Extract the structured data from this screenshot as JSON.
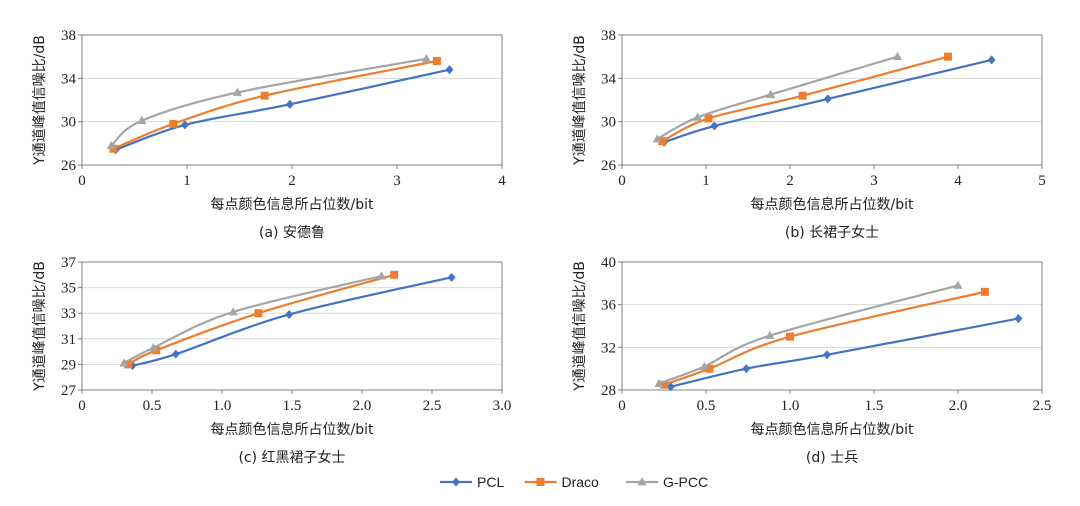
{
  "figure": {
    "legend": [
      {
        "name": "PCL",
        "color": "#4472C4",
        "marker": "diamond"
      },
      {
        "name": "Draco",
        "color": "#ED7D31",
        "marker": "square"
      },
      {
        "name": "G-PCC",
        "color": "#A5A5A5",
        "marker": "triangle"
      }
    ]
  },
  "chart_data": [
    {
      "type": "line",
      "caption": "(a) 安德鲁",
      "xlabel": "每点颜色信息所占位数/bit",
      "ylabel": "Y通道峰值信噪比/dB",
      "xlim": [
        0,
        4
      ],
      "ylim": [
        26,
        38
      ],
      "xticks": [
        "0",
        "1",
        "2",
        "3",
        "4"
      ],
      "yticks": [
        "26",
        "30",
        "34",
        "38"
      ],
      "series": [
        {
          "name": "PCL",
          "x": [
            0.32,
            0.98,
            1.98,
            3.5
          ],
          "y": [
            27.4,
            29.7,
            31.6,
            34.8
          ]
        },
        {
          "name": "Draco",
          "x": [
            0.3,
            0.87,
            1.74,
            3.38
          ],
          "y": [
            27.5,
            29.8,
            32.4,
            35.6
          ]
        },
        {
          "name": "G-PCC",
          "x": [
            0.28,
            0.57,
            1.48,
            3.28
          ],
          "y": [
            27.8,
            30.1,
            32.7,
            35.8
          ]
        }
      ]
    },
    {
      "type": "line",
      "caption": "(b) 长裙子女士",
      "xlabel": "每点颜色信息所占位数/bit",
      "ylabel": "Y通道峰值信噪比/dB",
      "xlim": [
        0,
        5
      ],
      "ylim": [
        26,
        38
      ],
      "xticks": [
        "0",
        "1",
        "2",
        "3",
        "4",
        "5"
      ],
      "yticks": [
        "26",
        "30",
        "34",
        "38"
      ],
      "series": [
        {
          "name": "PCL",
          "x": [
            0.5,
            1.1,
            2.45,
            4.4
          ],
          "y": [
            28.1,
            29.6,
            32.1,
            35.7
          ]
        },
        {
          "name": "Draco",
          "x": [
            0.48,
            1.03,
            2.15,
            3.88
          ],
          "y": [
            28.2,
            30.3,
            32.4,
            36.0
          ]
        },
        {
          "name": "G-PCC",
          "x": [
            0.42,
            0.9,
            1.77,
            3.28
          ],
          "y": [
            28.4,
            30.4,
            32.5,
            36.0
          ]
        }
      ]
    },
    {
      "type": "line",
      "caption": "(c) 红黑裙子女士",
      "xlabel": "每点颜色信息所占位数/bit",
      "ylabel": "Y通道峰值信噪比/dB",
      "xlim": [
        0,
        3.0
      ],
      "ylim": [
        27,
        37
      ],
      "xticks": [
        "0",
        "0.5",
        "1.0",
        "1.5",
        "2.0",
        "2.5",
        "3.0"
      ],
      "yticks": [
        "27",
        "29",
        "31",
        "33",
        "35",
        "37"
      ],
      "series": [
        {
          "name": "PCL",
          "x": [
            0.36,
            0.67,
            1.48,
            2.64
          ],
          "y": [
            28.9,
            29.8,
            32.9,
            35.8
          ]
        },
        {
          "name": "Draco",
          "x": [
            0.33,
            0.53,
            1.26,
            2.23
          ],
          "y": [
            29.0,
            30.1,
            33.0,
            36.0
          ]
        },
        {
          "name": "G-PCC",
          "x": [
            0.3,
            0.51,
            1.08,
            2.14
          ],
          "y": [
            29.1,
            30.3,
            33.1,
            35.9
          ]
        }
      ]
    },
    {
      "type": "line",
      "caption": "(d) 士兵",
      "xlabel": "每点颜色信息所占位数/bit",
      "ylabel": "Y通道峰值信噪比/dB",
      "xlim": [
        0,
        2.5
      ],
      "ylim": [
        28,
        40
      ],
      "xticks": [
        "0",
        "0.5",
        "1.0",
        "1.5",
        "2.0",
        "2.5"
      ],
      "yticks": [
        "28",
        "32",
        "36",
        "40"
      ],
      "series": [
        {
          "name": "PCL",
          "x": [
            0.29,
            0.74,
            1.22,
            2.36
          ],
          "y": [
            28.3,
            30.0,
            31.3,
            34.7
          ]
        },
        {
          "name": "Draco",
          "x": [
            0.25,
            0.52,
            1.0,
            2.16
          ],
          "y": [
            28.5,
            30.0,
            33.0,
            37.2
          ]
        },
        {
          "name": "G-PCC",
          "x": [
            0.22,
            0.49,
            0.88,
            2.0
          ],
          "y": [
            28.6,
            30.2,
            33.1,
            37.8
          ]
        }
      ]
    }
  ]
}
